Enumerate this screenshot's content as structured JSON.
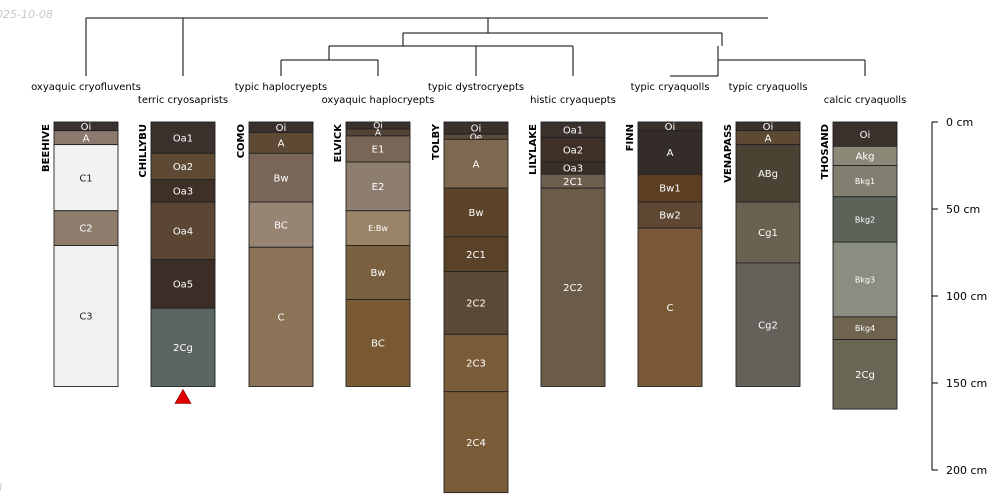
{
  "date_stamp": "025-10-08",
  "corner_mark": "l",
  "depth_axis": {
    "unit": "cm",
    "min": 0,
    "max": 200,
    "ticks": [
      {
        "value": 0,
        "label": "0 cm"
      },
      {
        "value": 50,
        "label": "50 cm"
      },
      {
        "value": 100,
        "label": "100 cm"
      },
      {
        "value": 150,
        "label": "150 cm"
      },
      {
        "value": 200,
        "label": "200 cm"
      }
    ]
  },
  "profiles": [
    {
      "id": "BEEHIVE",
      "taxon": "oxyaquic cryofluvents",
      "marker": false,
      "horizons": [
        {
          "name": "Oi",
          "top": 0,
          "bottom": 5,
          "color": "#3a3230"
        },
        {
          "name": "A",
          "top": 5,
          "bottom": 13,
          "color": "#8c7a6e"
        },
        {
          "name": "C1",
          "top": 13,
          "bottom": 51,
          "color": "#f2f2f2"
        },
        {
          "name": "C2",
          "top": 51,
          "bottom": 71,
          "color": "#8e7c6c"
        },
        {
          "name": "C3",
          "top": 71,
          "bottom": 152,
          "color": "#f2f2f2"
        }
      ]
    },
    {
      "id": "CHILLYBU",
      "taxon": "terric cryosaprists",
      "marker": true,
      "horizons": [
        {
          "name": "Oa1",
          "top": 0,
          "bottom": 18,
          "color": "#3a302c"
        },
        {
          "name": "Oa2",
          "top": 18,
          "bottom": 33,
          "color": "#5e4a34"
        },
        {
          "name": "Oa3",
          "top": 33,
          "bottom": 46,
          "color": "#3e3026"
        },
        {
          "name": "Oa4",
          "top": 46,
          "bottom": 79,
          "color": "#5a4632"
        },
        {
          "name": "Oa5",
          "top": 79,
          "bottom": 107,
          "color": "#3c2e26"
        },
        {
          "name": "2Cg",
          "top": 107,
          "bottom": 152,
          "color": "#5b6563"
        }
      ]
    },
    {
      "id": "COMO",
      "taxon": "typic haplocryepts",
      "marker": false,
      "horizons": [
        {
          "name": "Oi",
          "top": 0,
          "bottom": 6,
          "color": "#3a302c"
        },
        {
          "name": "A",
          "top": 6,
          "bottom": 18,
          "color": "#5e4a34"
        },
        {
          "name": "Bw",
          "top": 18,
          "bottom": 46,
          "color": "#7a6656"
        },
        {
          "name": "BC",
          "top": 46,
          "bottom": 72,
          "color": "#988472"
        },
        {
          "name": "C",
          "top": 72,
          "bottom": 152,
          "color": "#8c7256"
        }
      ]
    },
    {
      "id": "ELVICK",
      "taxon": "oxyaquic haplocryepts",
      "marker": false,
      "horizons": [
        {
          "name": "Oi",
          "top": 0,
          "bottom": 4,
          "color": "#3a302c"
        },
        {
          "name": "A",
          "top": 4,
          "bottom": 8,
          "color": "#524436"
        },
        {
          "name": "E1",
          "top": 8,
          "bottom": 23,
          "color": "#7a6656"
        },
        {
          "name": "E2",
          "top": 23,
          "bottom": 51,
          "color": "#8e7e70"
        },
        {
          "name": "E:Bw",
          "top": 51,
          "bottom": 71,
          "color": "#9a8468"
        },
        {
          "name": "Bw",
          "top": 71,
          "bottom": 102,
          "color": "#7a6040"
        },
        {
          "name": "BC",
          "top": 102,
          "bottom": 152,
          "color": "#7a5a32"
        }
      ]
    },
    {
      "id": "TOLBY",
      "taxon": "typic dystrocryepts",
      "marker": false,
      "horizons": [
        {
          "name": "Oi",
          "top": 0,
          "bottom": 7,
          "color": "#3a302c"
        },
        {
          "name": "Oe",
          "top": 7,
          "bottom": 10,
          "color": "#5a4a3a"
        },
        {
          "name": "A",
          "top": 10,
          "bottom": 38,
          "color": "#7e6850"
        },
        {
          "name": "Bw",
          "top": 38,
          "bottom": 66,
          "color": "#5c4228"
        },
        {
          "name": "2C1",
          "top": 66,
          "bottom": 86,
          "color": "#5a4228"
        },
        {
          "name": "2C2",
          "top": 86,
          "bottom": 122,
          "color": "#5c4a36"
        },
        {
          "name": "2C3",
          "top": 122,
          "bottom": 155,
          "color": "#7a5c38"
        },
        {
          "name": "2C4",
          "top": 155,
          "bottom": 213,
          "color": "#7a5c38"
        }
      ]
    },
    {
      "id": "LILYLAKE",
      "taxon": "histic cryaquepts",
      "marker": false,
      "horizons": [
        {
          "name": "Oa1",
          "top": 0,
          "bottom": 9,
          "color": "#3a302c"
        },
        {
          "name": "Oa2",
          "top": 9,
          "bottom": 23,
          "color": "#3e3026"
        },
        {
          "name": "Oa3",
          "top": 23,
          "bottom": 30,
          "color": "#3a2e28"
        },
        {
          "name": "2C1",
          "top": 30,
          "bottom": 38,
          "color": "#6e6050"
        },
        {
          "name": "2C2",
          "top": 38,
          "bottom": 152,
          "color": "#6a5c48"
        }
      ]
    },
    {
      "id": "FINN",
      "taxon": "typic cryaquolls",
      "marker": false,
      "horizons": [
        {
          "name": "Oi",
          "top": 0,
          "bottom": 5,
          "color": "#3a302c"
        },
        {
          "name": "A",
          "top": 5,
          "bottom": 30,
          "color": "#342c28"
        },
        {
          "name": "Bw1",
          "top": 30,
          "bottom": 46,
          "color": "#5c3e22"
        },
        {
          "name": "Bw2",
          "top": 46,
          "bottom": 61,
          "color": "#5e4834"
        },
        {
          "name": "C",
          "top": 61,
          "bottom": 152,
          "color": "#7a5a36"
        }
      ]
    },
    {
      "id": "VENAPASS",
      "taxon": "typic cryaquolls",
      "marker": false,
      "horizons": [
        {
          "name": "Oi",
          "top": 0,
          "bottom": 5,
          "color": "#3a302c"
        },
        {
          "name": "A",
          "top": 5,
          "bottom": 13,
          "color": "#5e4a34"
        },
        {
          "name": "ABg",
          "top": 13,
          "bottom": 46,
          "color": "#4a4232"
        },
        {
          "name": "Cg1",
          "top": 46,
          "bottom": 81,
          "color": "#6a6250"
        },
        {
          "name": "Cg2",
          "top": 81,
          "bottom": 152,
          "color": "#64605a"
        }
      ]
    },
    {
      "id": "THOSAND",
      "taxon": "calcic cryaquolls",
      "marker": false,
      "horizons": [
        {
          "name": "Oi",
          "top": 0,
          "bottom": 14,
          "color": "#3a302c"
        },
        {
          "name": "Akg",
          "top": 14,
          "bottom": 25,
          "color": "#8c8878"
        },
        {
          "name": "Bkg1",
          "top": 25,
          "bottom": 43,
          "color": "#807e6e"
        },
        {
          "name": "Bkg2",
          "top": 43,
          "bottom": 69,
          "color": "#5c645a"
        },
        {
          "name": "Bkg3",
          "top": 69,
          "bottom": 112,
          "color": "#8a8e80"
        },
        {
          "name": "Bkg4",
          "top": 112,
          "bottom": 125,
          "color": "#6e6450"
        },
        {
          "name": "2Cg",
          "top": 125,
          "bottom": 165,
          "color": "#6a6656"
        }
      ]
    }
  ]
}
